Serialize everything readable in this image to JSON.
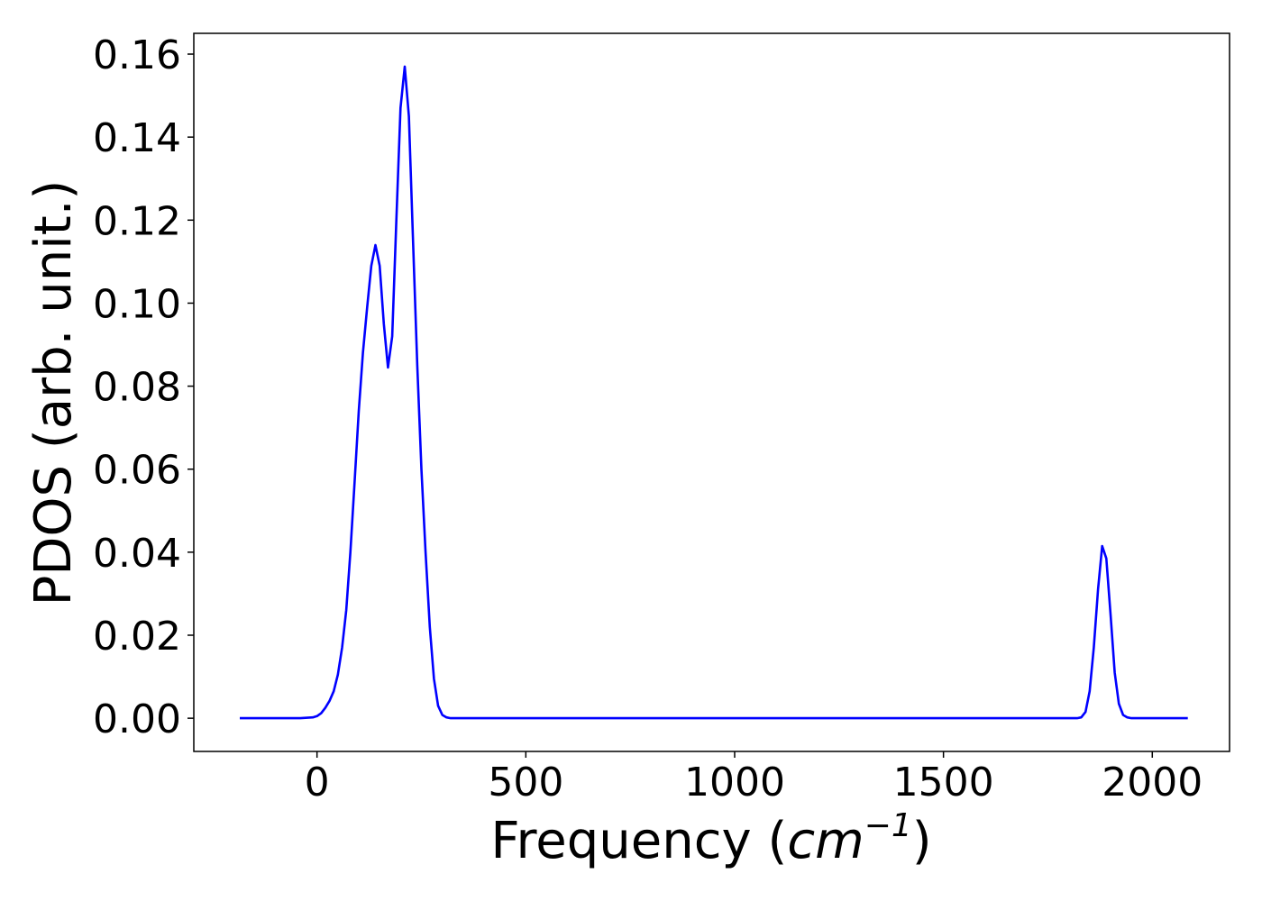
{
  "chart_data": {
    "type": "line",
    "title": "",
    "xlabel": "Frequency (cm⁻¹)",
    "xlabel_parts": {
      "prefix": "Frequency (",
      "unit": "cm",
      "exponent": "−1",
      "suffix": ")"
    },
    "ylabel": "PDOS (arb. unit.)",
    "xlim": [
      -295,
      2185
    ],
    "ylim": [
      -0.008,
      0.165
    ],
    "xticks": [
      0,
      500,
      1000,
      1500,
      2000
    ],
    "xtick_labels": [
      "0",
      "500",
      "1000",
      "1500",
      "2000"
    ],
    "yticks": [
      0.0,
      0.02,
      0.04,
      0.06,
      0.08,
      0.1,
      0.12,
      0.14,
      0.16
    ],
    "ytick_labels": [
      "0.00",
      "0.02",
      "0.04",
      "0.06",
      "0.08",
      "0.10",
      "0.12",
      "0.14",
      "0.16"
    ],
    "grid": false,
    "legend": "none",
    "series": [
      {
        "color": "#0000ff",
        "x": [
          -185,
          -100,
          -40,
          -10,
          0,
          10,
          20,
          30,
          40,
          50,
          60,
          70,
          80,
          90,
          100,
          110,
          120,
          130,
          140,
          150,
          160,
          170,
          180,
          190,
          200,
          210,
          220,
          230,
          240,
          250,
          260,
          270,
          280,
          290,
          300,
          310,
          320,
          330,
          340,
          360,
          400,
          600,
          800,
          1000,
          1200,
          1400,
          1600,
          1800,
          1820,
          1830,
          1840,
          1850,
          1860,
          1870,
          1880,
          1890,
          1900,
          1910,
          1920,
          1930,
          1940,
          1950,
          1960,
          1980,
          2000,
          2040,
          2085
        ],
        "y": [
          0.0,
          0.0,
          0.0,
          0.0002,
          0.0005,
          0.0012,
          0.0025,
          0.0042,
          0.0065,
          0.0105,
          0.017,
          0.026,
          0.04,
          0.057,
          0.074,
          0.088,
          0.099,
          0.109,
          0.114,
          0.109,
          0.095,
          0.0845,
          0.092,
          0.12,
          0.147,
          0.157,
          0.145,
          0.115,
          0.085,
          0.06,
          0.04,
          0.022,
          0.0095,
          0.003,
          0.0008,
          0.0002,
          0.0,
          0.0,
          0.0,
          0.0,
          0.0,
          0.0,
          0.0,
          0.0,
          0.0,
          0.0,
          0.0,
          0.0,
          0.0,
          0.0002,
          0.0015,
          0.0065,
          0.017,
          0.031,
          0.0415,
          0.0385,
          0.025,
          0.011,
          0.0035,
          0.0008,
          0.0002,
          0.0,
          0.0,
          0.0,
          0.0,
          0.0,
          0.0
        ]
      }
    ]
  }
}
